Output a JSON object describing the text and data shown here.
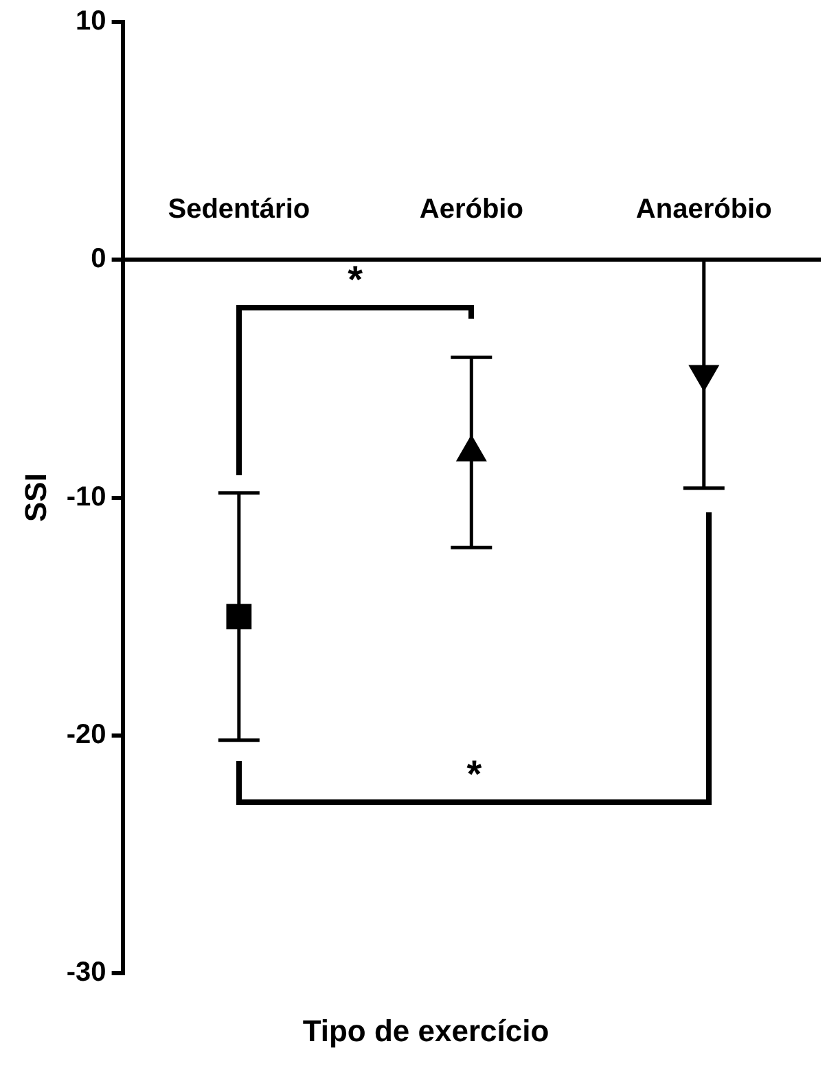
{
  "chart_data": {
    "type": "scatter",
    "xlabel": "Tipo de exercício",
    "ylabel": "SSI",
    "categories": [
      "Sedentário",
      "Aeróbio",
      "Anaeróbio"
    ],
    "series": [
      {
        "color": "#000000",
        "marker": "square",
        "values": [
          -15,
          null,
          null
        ],
        "errors": [
          5.2,
          null,
          null
        ]
      },
      {
        "color": "#000000",
        "marker": "triangle",
        "values": [
          null,
          -8.1,
          null
        ],
        "errors": [
          null,
          4,
          null
        ]
      },
      {
        "color": "#000000",
        "marker": "triangle-down",
        "values": [
          null,
          null,
          -4.8
        ],
        "errors": [
          null,
          null,
          4.8
        ]
      }
    ],
    "ylim": [
      -30,
      10
    ],
    "yticks": [
      10,
      0,
      -10,
      -20,
      -30
    ],
    "grid": false,
    "legend": false,
    "annotations": [
      "*",
      "*"
    ]
  }
}
